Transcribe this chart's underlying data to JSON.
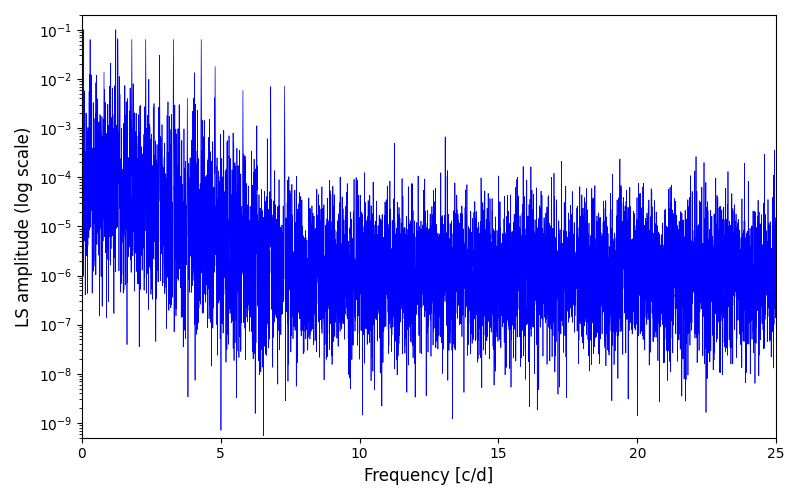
{
  "xlabel": "Frequency [c/d]",
  "ylabel": "LS amplitude (log scale)",
  "xlim": [
    0,
    25
  ],
  "line_color": "#0000ff",
  "line_width": 0.5,
  "figsize": [
    8.0,
    5.0
  ],
  "dpi": 100,
  "xticks": [
    0,
    5,
    10,
    15,
    20,
    25
  ],
  "background_color": "#ffffff",
  "seed": 12345,
  "n_points": 8000,
  "freq_max": 25.0
}
